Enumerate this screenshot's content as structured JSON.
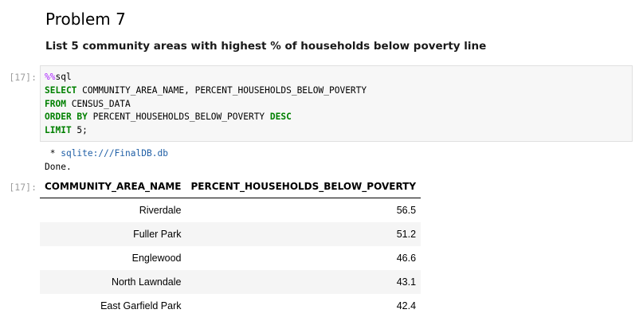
{
  "markdown": {
    "heading": "Problem 7",
    "paragraph": "List 5 community areas with highest % of households below poverty line"
  },
  "code_cell": {
    "prompt": "[17]:",
    "lines": {
      "l1_magic": "%%",
      "l1_rest": "sql",
      "l2_kw": "SELECT",
      "l2_rest": " COMMUNITY_AREA_NAME, PERCENT_HOUSEHOLDS_BELOW_POVERTY",
      "l3_kw": "FROM",
      "l3_rest": " CENSUS_DATA",
      "l4_kw1": "ORDER BY",
      "l4_mid": " PERCENT_HOUSEHOLDS_BELOW_POVERTY ",
      "l4_kw2": "DESC",
      "l5_kw": "LIMIT",
      "l5_rest": " 5;"
    }
  },
  "output": {
    "prompt": "[17]:",
    "bullet": " * ",
    "db_url": "sqlite:///FinalDB.db",
    "done": "Done.",
    "table": {
      "headers": [
        "COMMUNITY_AREA_NAME",
        "PERCENT_HOUSEHOLDS_BELOW_POVERTY"
      ],
      "rows": [
        [
          "Riverdale",
          "56.5"
        ],
        [
          "Fuller Park",
          "51.2"
        ],
        [
          "Englewood",
          "46.6"
        ],
        [
          "North Lawndale",
          "43.1"
        ],
        [
          "East Garfield Park",
          "42.4"
        ]
      ]
    }
  }
}
